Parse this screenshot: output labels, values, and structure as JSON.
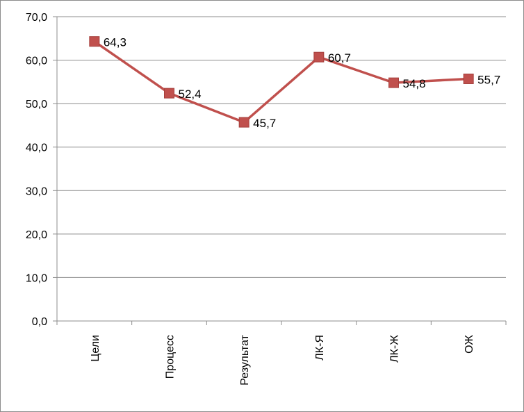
{
  "chart_data": {
    "type": "line",
    "categories": [
      "Цели",
      "Процесс",
      "Результат",
      "ЛК-Я",
      "ЛК-Ж",
      "ОЖ"
    ],
    "values": [
      64.3,
      52.4,
      45.7,
      60.7,
      54.8,
      55.7
    ],
    "value_labels": [
      "64,3",
      "52,4",
      "45,7",
      "60,7",
      "54,8",
      "55,7"
    ],
    "y_ticks": [
      0,
      10,
      20,
      30,
      40,
      50,
      60,
      70
    ],
    "y_tick_labels": [
      "0,0",
      "10,0",
      "20,0",
      "30,0",
      "40,0",
      "50,0",
      "60,0",
      "70,0"
    ],
    "ylim": [
      0,
      70
    ],
    "grid": true,
    "legend": "none",
    "colors": {
      "line": "#C0504D",
      "marker": "#C0504D",
      "gridline": "#8c8c8c",
      "axis": "#8c8c8c"
    }
  }
}
